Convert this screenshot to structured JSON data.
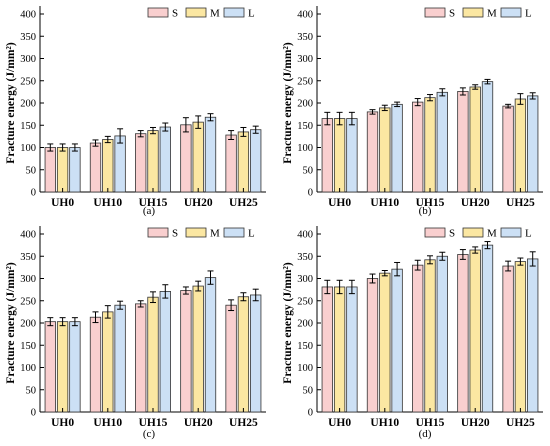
{
  "colors": {
    "S": "#f9cfcf",
    "M": "#fbe7a2",
    "L": "#cce0f5"
  },
  "chart_data": [
    {
      "type": "bar",
      "panel_label": "(a)",
      "ylabel": "Fracture energy (J/mm²)",
      "ylim": [
        0,
        400
      ],
      "yticks": [
        0,
        50,
        100,
        150,
        200,
        250,
        300,
        350,
        400
      ],
      "categories": [
        "UH0",
        "UH10",
        "UH15",
        "UH20",
        "UH25"
      ],
      "legend_position": "top-right",
      "series": [
        {
          "name": "S",
          "values": [
            100,
            110,
            131,
            151,
            128
          ],
          "errors": [
            8,
            7,
            7,
            16,
            10
          ]
        },
        {
          "name": "M",
          "values": [
            100,
            118,
            138,
            157,
            135
          ],
          "errors": [
            8,
            7,
            7,
            14,
            10
          ]
        },
        {
          "name": "L",
          "values": [
            100,
            126,
            146,
            168,
            140
          ],
          "errors": [
            8,
            16,
            9,
            8,
            8
          ]
        }
      ]
    },
    {
      "type": "bar",
      "panel_label": "(b)",
      "ylabel": "Fracture energy (J/mm²)",
      "ylim": [
        0,
        400
      ],
      "yticks": [
        0,
        50,
        100,
        150,
        200,
        250,
        300,
        350,
        400
      ],
      "categories": [
        "UH0",
        "UH10",
        "UH15",
        "UH20",
        "UH25"
      ],
      "legend_position": "top-right",
      "series": [
        {
          "name": "S",
          "values": [
            165,
            180,
            202,
            226,
            193
          ],
          "errors": [
            14,
            5,
            8,
            8,
            4
          ]
        },
        {
          "name": "M",
          "values": [
            165,
            189,
            212,
            236,
            209
          ],
          "errors": [
            14,
            6,
            7,
            5,
            12
          ]
        },
        {
          "name": "L",
          "values": [
            165,
            197,
            224,
            248,
            216
          ],
          "errors": [
            14,
            5,
            8,
            5,
            7
          ]
        }
      ]
    },
    {
      "type": "bar",
      "panel_label": "(c)",
      "ylabel": "Fracture energy (J/mm²)",
      "ylim": [
        0,
        400
      ],
      "yticks": [
        0,
        50,
        100,
        150,
        200,
        250,
        300,
        350,
        400
      ],
      "categories": [
        "UH0",
        "UH10",
        "UH15",
        "UH20",
        "UH25"
      ],
      "legend_position": "top-right",
      "series": [
        {
          "name": "S",
          "values": [
            203,
            213,
            243,
            273,
            240
          ],
          "errors": [
            9,
            12,
            7,
            8,
            12
          ]
        },
        {
          "name": "M",
          "values": [
            203,
            225,
            258,
            283,
            259
          ],
          "errors": [
            9,
            14,
            12,
            11,
            9
          ]
        },
        {
          "name": "L",
          "values": [
            203,
            240,
            271,
            302,
            263
          ],
          "errors": [
            9,
            9,
            15,
            15,
            13
          ]
        }
      ]
    },
    {
      "type": "bar",
      "panel_label": "(d)",
      "ylabel": "Fracture energy (J/mm²)",
      "ylim": [
        0,
        400
      ],
      "yticks": [
        0,
        50,
        100,
        150,
        200,
        250,
        300,
        350,
        400
      ],
      "categories": [
        "UH0",
        "UH10",
        "UH15",
        "UH20",
        "UH25"
      ],
      "legend_position": "top-right",
      "series": [
        {
          "name": "S",
          "values": [
            281,
            300,
            330,
            354,
            328
          ],
          "errors": [
            15,
            10,
            11,
            11,
            11
          ]
        },
        {
          "name": "M",
          "values": [
            281,
            312,
            342,
            364,
            338
          ],
          "errors": [
            15,
            6,
            9,
            7,
            8
          ]
        },
        {
          "name": "L",
          "values": [
            281,
            321,
            350,
            375,
            344
          ],
          "errors": [
            15,
            15,
            9,
            8,
            16
          ]
        }
      ]
    }
  ]
}
